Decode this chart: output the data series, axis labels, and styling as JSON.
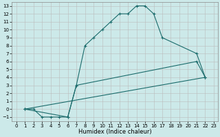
{
  "xlabel": "Humidex (Indice chaleur)",
  "ylabel": "",
  "bg_color": "#cce9e9",
  "grid_color": "#bbbbbb",
  "line_color": "#1a6b6b",
  "xlim": [
    -0.5,
    23.5
  ],
  "ylim": [
    -1.5,
    13.5
  ],
  "xticks": [
    0,
    1,
    2,
    3,
    4,
    5,
    6,
    7,
    8,
    9,
    10,
    11,
    12,
    13,
    14,
    15,
    16,
    17,
    18,
    19,
    20,
    21,
    22,
    23
  ],
  "yticks": [
    -1,
    0,
    1,
    2,
    3,
    4,
    5,
    6,
    7,
    8,
    9,
    10,
    11,
    12,
    13
  ],
  "line1_x": [
    1,
    2,
    3,
    4,
    5,
    6,
    7,
    8,
    9,
    10,
    11,
    12,
    13,
    14,
    15,
    16,
    17,
    21,
    22
  ],
  "line1_y": [
    0,
    0,
    -1,
    -1,
    -1,
    -1,
    3,
    8,
    9,
    10,
    11,
    12,
    12,
    13,
    13,
    12,
    9,
    7,
    4
  ],
  "line2_x": [
    1,
    6,
    7,
    21,
    22
  ],
  "line2_y": [
    0,
    -1,
    3,
    6,
    4
  ],
  "line3_x": [
    1,
    22
  ],
  "line3_y": [
    0,
    4
  ],
  "marker": "+",
  "markersize": 3,
  "linewidth": 0.8,
  "tick_fontsize": 5,
  "xlabel_fontsize": 6
}
